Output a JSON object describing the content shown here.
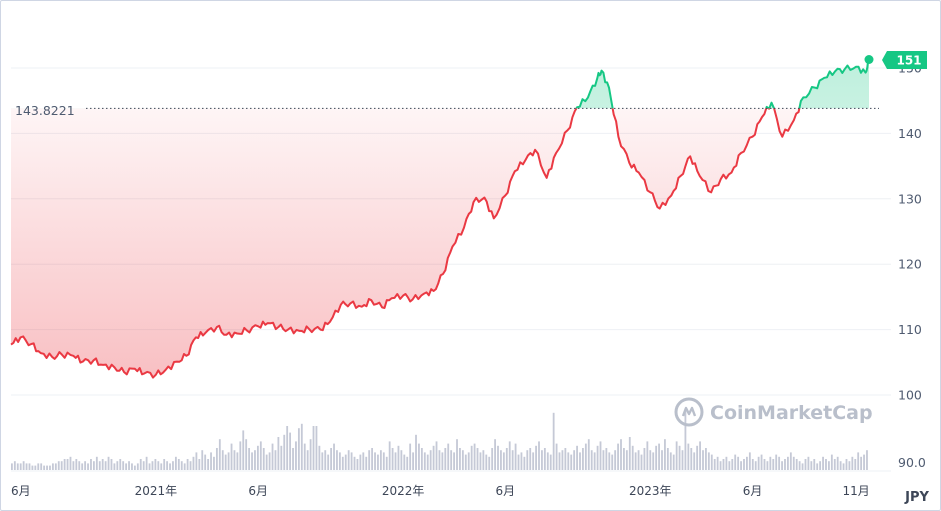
{
  "chart_data": {
    "type": "area",
    "watermark": "CoinMarketCap",
    "unit": "JPY",
    "reference_line": {
      "value": 143.8221,
      "label": "143.8221"
    },
    "current_badge": {
      "label": "151",
      "value": 151.3
    },
    "colors": {
      "below_reference": "#ea3943",
      "above_reference": "#16c784",
      "badge": "#16c784",
      "volume": "#c5c9d6",
      "grid": "#eef0f4"
    },
    "y_axis": {
      "price_ticks": [
        "100",
        "110",
        "120",
        "130",
        "140",
        "150"
      ],
      "volume_tick": "90.0",
      "ylim": [
        100,
        152
      ]
    },
    "x_axis": {
      "tick_labels": [
        "6月",
        "2021年",
        "6月",
        "2022年",
        "6月",
        "2023年",
        "6月",
        "11月"
      ],
      "tick_dates": [
        "2020-06-01",
        "2021-01-01",
        "2021-06-01",
        "2022-01-01",
        "2022-06-01",
        "2023-01-01",
        "2023-06-01",
        "2023-11-01"
      ],
      "range": [
        "2020-06-01",
        "2023-11-20"
      ]
    },
    "series": [
      {
        "x": [
          "2020-06-01",
          "2020-06-15",
          "2020-07-01",
          "2020-07-15",
          "2020-08-01",
          "2020-08-15",
          "2020-09-01",
          "2020-09-15",
          "2020-10-01",
          "2020-10-15",
          "2020-11-01",
          "2020-11-15",
          "2020-12-01",
          "2020-12-15",
          "2021-01-01",
          "2021-01-15",
          "2021-02-01",
          "2021-02-15",
          "2021-03-01",
          "2021-03-15",
          "2021-04-01",
          "2021-04-15",
          "2021-05-01",
          "2021-05-15",
          "2021-06-01",
          "2021-06-15",
          "2021-07-01",
          "2021-07-15",
          "2021-08-01",
          "2021-08-15",
          "2021-09-01",
          "2021-09-15",
          "2021-10-01",
          "2021-10-15",
          "2021-11-01",
          "2021-11-15",
          "2021-12-01",
          "2021-12-15",
          "2022-01-01",
          "2022-01-15",
          "2022-02-01",
          "2022-02-15",
          "2022-03-01",
          "2022-03-15",
          "2022-04-01",
          "2022-04-15",
          "2022-05-01",
          "2022-05-15",
          "2022-06-01",
          "2022-06-15",
          "2022-07-01",
          "2022-07-15",
          "2022-08-01",
          "2022-08-15",
          "2022-09-01",
          "2022-09-15",
          "2022-10-01",
          "2022-10-15",
          "2022-10-21",
          "2022-11-01",
          "2022-11-15",
          "2022-12-01",
          "2022-12-15",
          "2023-01-01",
          "2023-01-15",
          "2023-02-01",
          "2023-02-15",
          "2023-03-01",
          "2023-03-15",
          "2023-04-01",
          "2023-04-15",
          "2023-05-01",
          "2023-05-15",
          "2023-06-01",
          "2023-06-15",
          "2023-06-29",
          "2023-07-15",
          "2023-08-01",
          "2023-08-15",
          "2023-09-01",
          "2023-09-15",
          "2023-10-01",
          "2023-10-15",
          "2023-11-01",
          "2023-11-15",
          "2023-11-20"
        ],
        "values": [
          107.7,
          108.8,
          107.8,
          106.4,
          105.8,
          106.2,
          106.0,
          105.1,
          105.3,
          104.6,
          104.2,
          103.5,
          104.0,
          103.3,
          103.1,
          103.8,
          105.1,
          106.0,
          108.8,
          109.5,
          110.4,
          109.2,
          109.4,
          109.9,
          110.5,
          111.0,
          110.4,
          110.0,
          109.8,
          110.1,
          110.0,
          111.2,
          113.8,
          114.0,
          113.5,
          114.5,
          113.4,
          114.8,
          115.2,
          114.6,
          115.5,
          115.9,
          118.5,
          122.7,
          125.6,
          129.5,
          130.2,
          127.0,
          130.5,
          134.2,
          136.0,
          137.5,
          133.2,
          137.0,
          140.5,
          144.0,
          145.5,
          148.5,
          149.6,
          147.0,
          139.5,
          135.5,
          134.0,
          131.0,
          128.5,
          130.5,
          133.5,
          136.5,
          133.5,
          131.0,
          133.0,
          134.0,
          137.0,
          139.5,
          142.5,
          144.7,
          139.5,
          142.0,
          145.5,
          147.0,
          148.5,
          149.5,
          149.8,
          150.2,
          149.3,
          151.3
        ]
      }
    ],
    "volume": {
      "ylim_top": 90.0,
      "values": [
        3,
        4,
        3,
        3,
        4,
        3,
        3,
        2,
        2,
        3,
        3,
        2,
        2,
        2,
        3,
        3,
        4,
        4,
        5,
        5,
        6,
        4,
        5,
        4,
        3,
        4,
        3,
        5,
        4,
        6,
        4,
        5,
        4,
        6,
        5,
        3,
        4,
        5,
        4,
        3,
        4,
        3,
        2,
        3,
        5,
        4,
        6,
        3,
        4,
        5,
        4,
        3,
        5,
        4,
        3,
        4,
        6,
        5,
        4,
        3,
        5,
        4,
        6,
        8,
        5,
        9,
        7,
        5,
        8,
        6,
        10,
        14,
        9,
        7,
        8,
        12,
        9,
        8,
        13,
        18,
        14,
        10,
        8,
        9,
        11,
        13,
        10,
        7,
        8,
        12,
        9,
        15,
        11,
        16,
        20,
        17,
        10,
        13,
        19,
        21,
        12,
        9,
        14,
        20,
        20,
        11,
        8,
        9,
        7,
        10,
        12,
        9,
        8,
        6,
        7,
        9,
        8,
        6,
        5,
        7,
        8,
        6,
        9,
        10,
        8,
        7,
        9,
        8,
        6,
        13,
        10,
        8,
        11,
        9,
        7,
        6,
        12,
        8,
        16,
        12,
        10,
        8,
        7,
        9,
        11,
        13,
        9,
        8,
        10,
        12,
        9,
        8,
        14,
        10,
        9,
        7,
        8,
        11,
        12,
        10,
        8,
        9,
        7,
        6,
        10,
        14,
        11,
        9,
        8,
        10,
        13,
        9,
        12,
        7,
        8,
        6,
        9,
        10,
        8,
        11,
        13,
        9,
        10,
        8,
        7,
        26,
        12,
        8,
        9,
        10,
        8,
        7,
        9,
        11,
        8,
        10,
        12,
        14,
        9,
        8,
        11,
        13,
        9,
        10,
        8,
        7,
        9,
        12,
        14,
        10,
        9,
        15,
        11,
        8,
        9,
        7,
        10,
        13,
        9,
        8,
        11,
        12,
        9,
        14,
        10,
        8,
        7,
        13,
        11,
        9,
        28,
        12,
        10,
        8,
        11,
        13,
        9,
        10,
        8,
        7,
        5,
        6,
        4,
        5,
        6,
        4,
        5,
        7,
        6,
        4,
        5,
        6,
        8,
        5,
        4,
        6,
        7,
        5,
        4,
        6,
        5,
        7,
        6,
        4,
        5,
        6,
        8,
        6,
        5,
        4,
        3,
        5,
        6,
        4,
        5,
        3,
        4,
        6,
        5,
        4,
        7,
        5,
        6,
        4,
        3,
        5,
        4,
        6,
        5,
        8,
        6,
        7,
        9
      ]
    }
  }
}
